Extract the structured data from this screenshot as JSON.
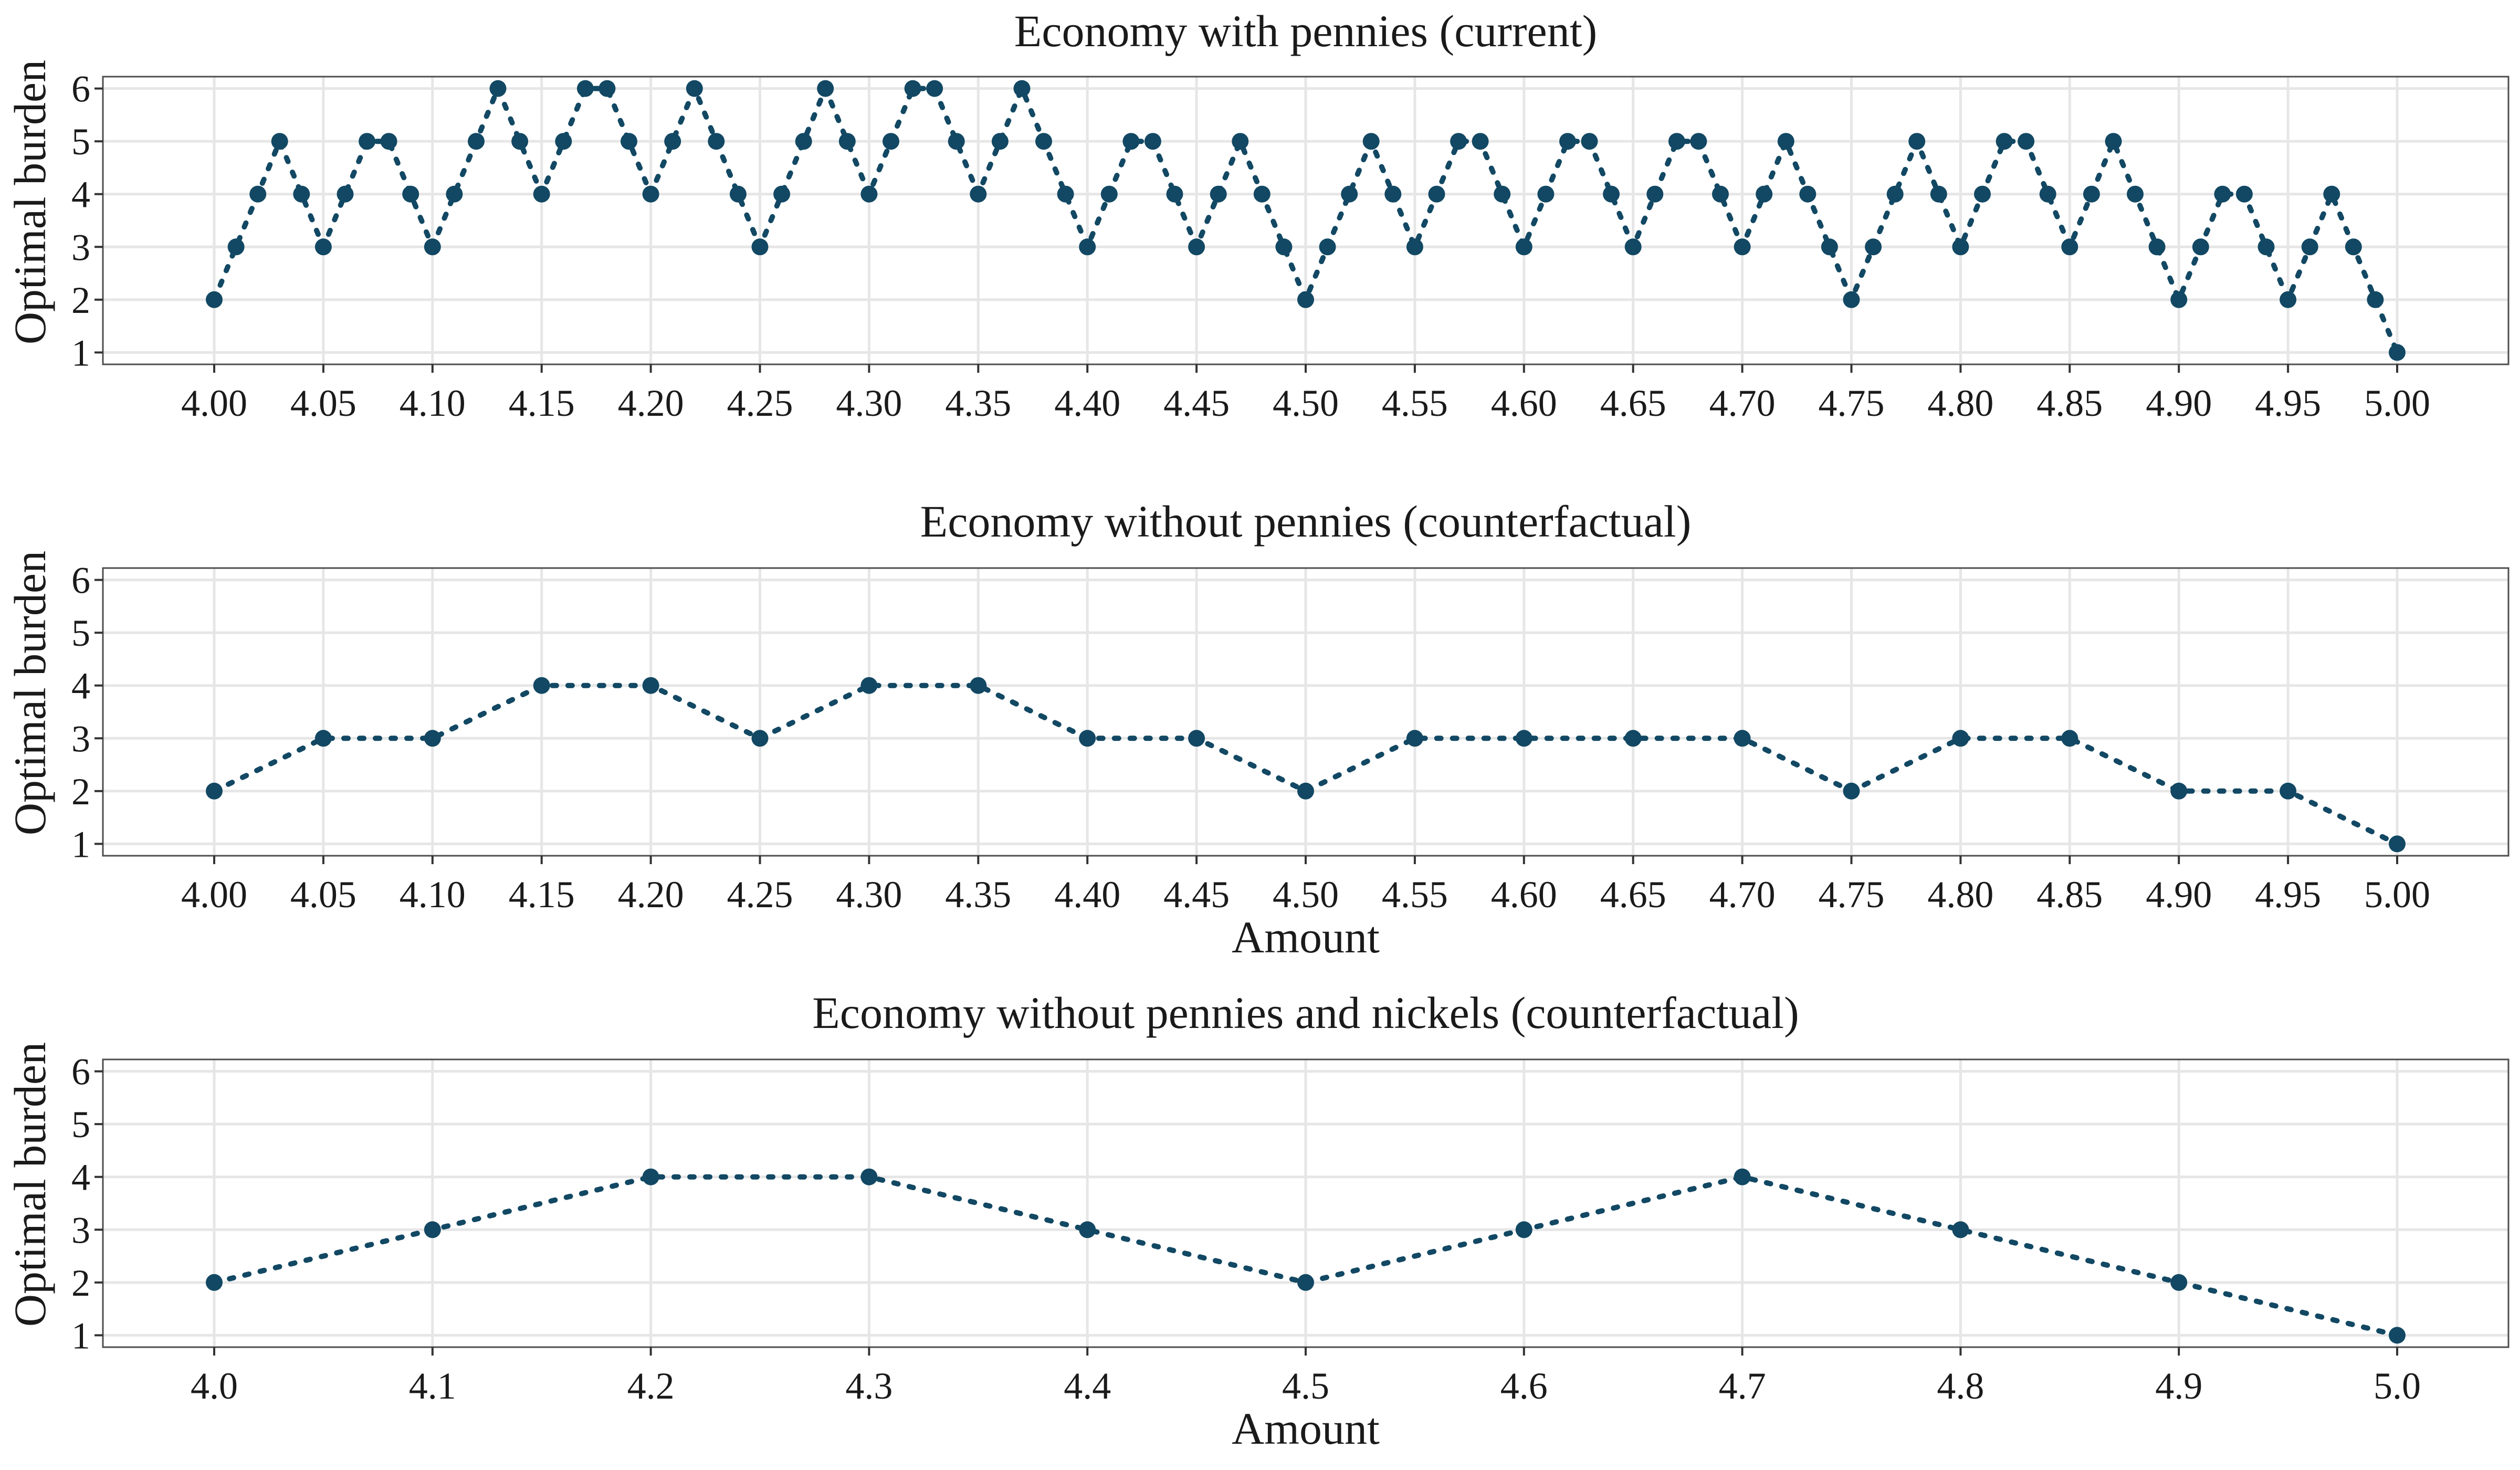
{
  "colors": {
    "series": "#124863",
    "grid": "#e6e6e6",
    "border": "#4d4d4d",
    "text": "#1a1a1a"
  },
  "chart_data": [
    {
      "type": "scatter",
      "title": "Economy with pennies (current)",
      "xlabel": "",
      "ylabel": "Optimal burden",
      "xlim": [
        4.0,
        5.0
      ],
      "ylim": [
        1,
        6
      ],
      "grid": true,
      "line_style": "dotted",
      "x_ticks": [
        "4.00",
        "4.05",
        "4.10",
        "4.15",
        "4.20",
        "4.25",
        "4.30",
        "4.35",
        "4.40",
        "4.45",
        "4.50",
        "4.55",
        "4.60",
        "4.65",
        "4.70",
        "4.75",
        "4.80",
        "4.85",
        "4.90",
        "4.95",
        "5.00"
      ],
      "y_ticks": [
        "1",
        "2",
        "3",
        "4",
        "5",
        "6"
      ],
      "x": [
        4.0,
        4.01,
        4.02,
        4.03,
        4.04,
        4.05,
        4.06,
        4.07,
        4.08,
        4.09,
        4.1,
        4.11,
        4.12,
        4.13,
        4.14,
        4.15,
        4.16,
        4.17,
        4.18,
        4.19,
        4.2,
        4.21,
        4.22,
        4.23,
        4.24,
        4.25,
        4.26,
        4.27,
        4.28,
        4.29,
        4.3,
        4.31,
        4.32,
        4.33,
        4.34,
        4.35,
        4.36,
        4.37,
        4.38,
        4.39,
        4.4,
        4.41,
        4.42,
        4.43,
        4.44,
        4.45,
        4.46,
        4.47,
        4.48,
        4.49,
        4.5,
        4.51,
        4.52,
        4.53,
        4.54,
        4.55,
        4.56,
        4.57,
        4.58,
        4.59,
        4.6,
        4.61,
        4.62,
        4.63,
        4.64,
        4.65,
        4.66,
        4.67,
        4.68,
        4.69,
        4.7,
        4.71,
        4.72,
        4.73,
        4.74,
        4.75,
        4.76,
        4.77,
        4.78,
        4.79,
        4.8,
        4.81,
        4.82,
        4.83,
        4.84,
        4.85,
        4.86,
        4.87,
        4.88,
        4.89,
        4.9,
        4.91,
        4.92,
        4.93,
        4.94,
        4.95,
        4.96,
        4.97,
        4.98,
        4.99,
        5.0
      ],
      "y": [
        2,
        3,
        4,
        5,
        4,
        3,
        4,
        5,
        5,
        4,
        3,
        4,
        5,
        6,
        5,
        4,
        5,
        6,
        6,
        5,
        4,
        5,
        6,
        5,
        4,
        3,
        4,
        5,
        6,
        5,
        4,
        5,
        6,
        6,
        5,
        4,
        5,
        6,
        5,
        4,
        3,
        4,
        5,
        5,
        4,
        3,
        4,
        5,
        4,
        3,
        2,
        3,
        4,
        5,
        4,
        3,
        4,
        5,
        5,
        4,
        3,
        4,
        5,
        5,
        4,
        3,
        4,
        5,
        5,
        4,
        3,
        4,
        5,
        4,
        3,
        2,
        3,
        4,
        5,
        4,
        3,
        4,
        5,
        5,
        4,
        3,
        4,
        5,
        4,
        3,
        2,
        3,
        4,
        4,
        3,
        2,
        3,
        4,
        3,
        2,
        1
      ]
    },
    {
      "type": "scatter",
      "title": "Economy without pennies (counterfactual)",
      "xlabel": "Amount",
      "ylabel": "Optimal burden",
      "xlim": [
        4.0,
        5.0
      ],
      "ylim": [
        1,
        6
      ],
      "grid": true,
      "line_style": "dotted",
      "x_ticks": [
        "4.00",
        "4.05",
        "4.10",
        "4.15",
        "4.20",
        "4.25",
        "4.30",
        "4.35",
        "4.40",
        "4.45",
        "4.50",
        "4.55",
        "4.60",
        "4.65",
        "4.70",
        "4.75",
        "4.80",
        "4.85",
        "4.90",
        "4.95",
        "5.00"
      ],
      "y_ticks": [
        "1",
        "2",
        "3",
        "4",
        "5",
        "6"
      ],
      "x": [
        4.0,
        4.05,
        4.1,
        4.15,
        4.2,
        4.25,
        4.3,
        4.35,
        4.4,
        4.45,
        4.5,
        4.55,
        4.6,
        4.65,
        4.7,
        4.75,
        4.8,
        4.85,
        4.9,
        4.95,
        5.0
      ],
      "y": [
        2,
        3,
        3,
        4,
        4,
        3,
        4,
        4,
        3,
        3,
        2,
        3,
        3,
        3,
        3,
        2,
        3,
        3,
        2,
        2,
        1
      ]
    },
    {
      "type": "scatter",
      "title": "Economy without pennies and nickels (counterfactual)",
      "xlabel": "Amount",
      "ylabel": "Optimal burden",
      "xlim": [
        4.0,
        5.0
      ],
      "ylim": [
        1,
        6
      ],
      "grid": true,
      "line_style": "dotted",
      "x_ticks": [
        "4.0",
        "4.1",
        "4.2",
        "4.3",
        "4.4",
        "4.5",
        "4.6",
        "4.7",
        "4.8",
        "4.9",
        "5.0"
      ],
      "y_ticks": [
        "1",
        "2",
        "3",
        "4",
        "5",
        "6"
      ],
      "x": [
        4.0,
        4.1,
        4.2,
        4.3,
        4.4,
        4.5,
        4.6,
        4.7,
        4.8,
        4.9,
        5.0
      ],
      "y": [
        2,
        3,
        4,
        4,
        3,
        2,
        3,
        4,
        3,
        2,
        1
      ]
    }
  ]
}
